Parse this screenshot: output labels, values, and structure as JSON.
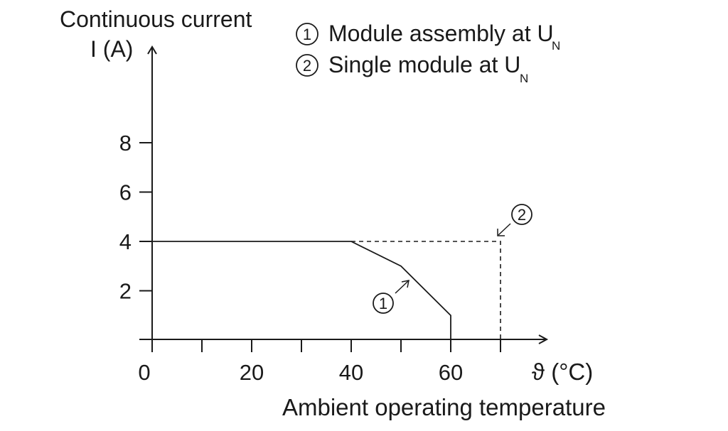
{
  "chart_data": {
    "type": "line",
    "ylabel_line1": "Continuous current",
    "ylabel_line2": "I (A)",
    "xlabel": "Ambient operating temperature",
    "x_unit": "ϑ (°C)",
    "x_ticks": [
      0,
      20,
      40,
      60
    ],
    "x_minor_ticks": [
      10,
      30,
      50,
      70
    ],
    "y_ticks": [
      2,
      4,
      6,
      8
    ],
    "xlim": [
      0,
      80
    ],
    "ylim": [
      0,
      9
    ],
    "series": [
      {
        "marker": "1",
        "name": "Module assembly at U",
        "subscript": "N",
        "style": "solid",
        "x": [
          0,
          40,
          50,
          60,
          60
        ],
        "y": [
          4,
          4,
          3,
          1,
          0
        ]
      },
      {
        "marker": "2",
        "name": "Single module at U",
        "subscript": "N",
        "style": "dashed",
        "x": [
          40,
          70,
          70
        ],
        "y": [
          4,
          4,
          0
        ]
      }
    ]
  }
}
